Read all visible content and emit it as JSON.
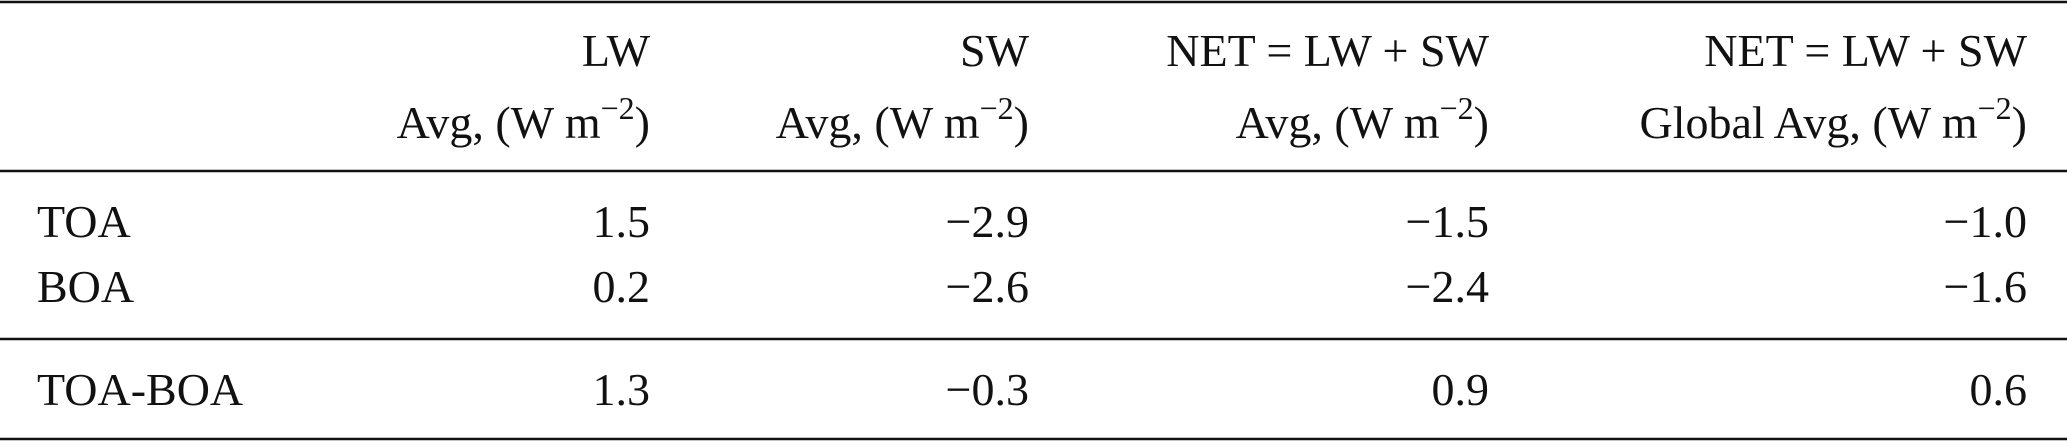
{
  "table": {
    "corner": "",
    "columns": [
      {
        "name": "LW",
        "unit": [
          "Avg, (W m",
          "−2",
          ")"
        ]
      },
      {
        "name": "SW",
        "unit": [
          "Avg, (W m",
          "−2",
          ")"
        ]
      },
      {
        "name": "NET = LW + SW",
        "unit": [
          "Avg, (W m",
          "−2",
          ")"
        ]
      },
      {
        "name": "NET = LW + SW",
        "unit": [
          "Global Avg, (W m",
          "−2",
          ")"
        ]
      }
    ],
    "rows": [
      [
        "TOA",
        "1.5",
        "−2.9",
        "−1.5",
        "−1.0"
      ],
      [
        "BOA",
        "0.2",
        "−2.6",
        "−2.4",
        "−1.6"
      ],
      [
        "TOA-BOA",
        "1.3",
        "−0.3",
        "0.9",
        "0.6"
      ]
    ]
  }
}
